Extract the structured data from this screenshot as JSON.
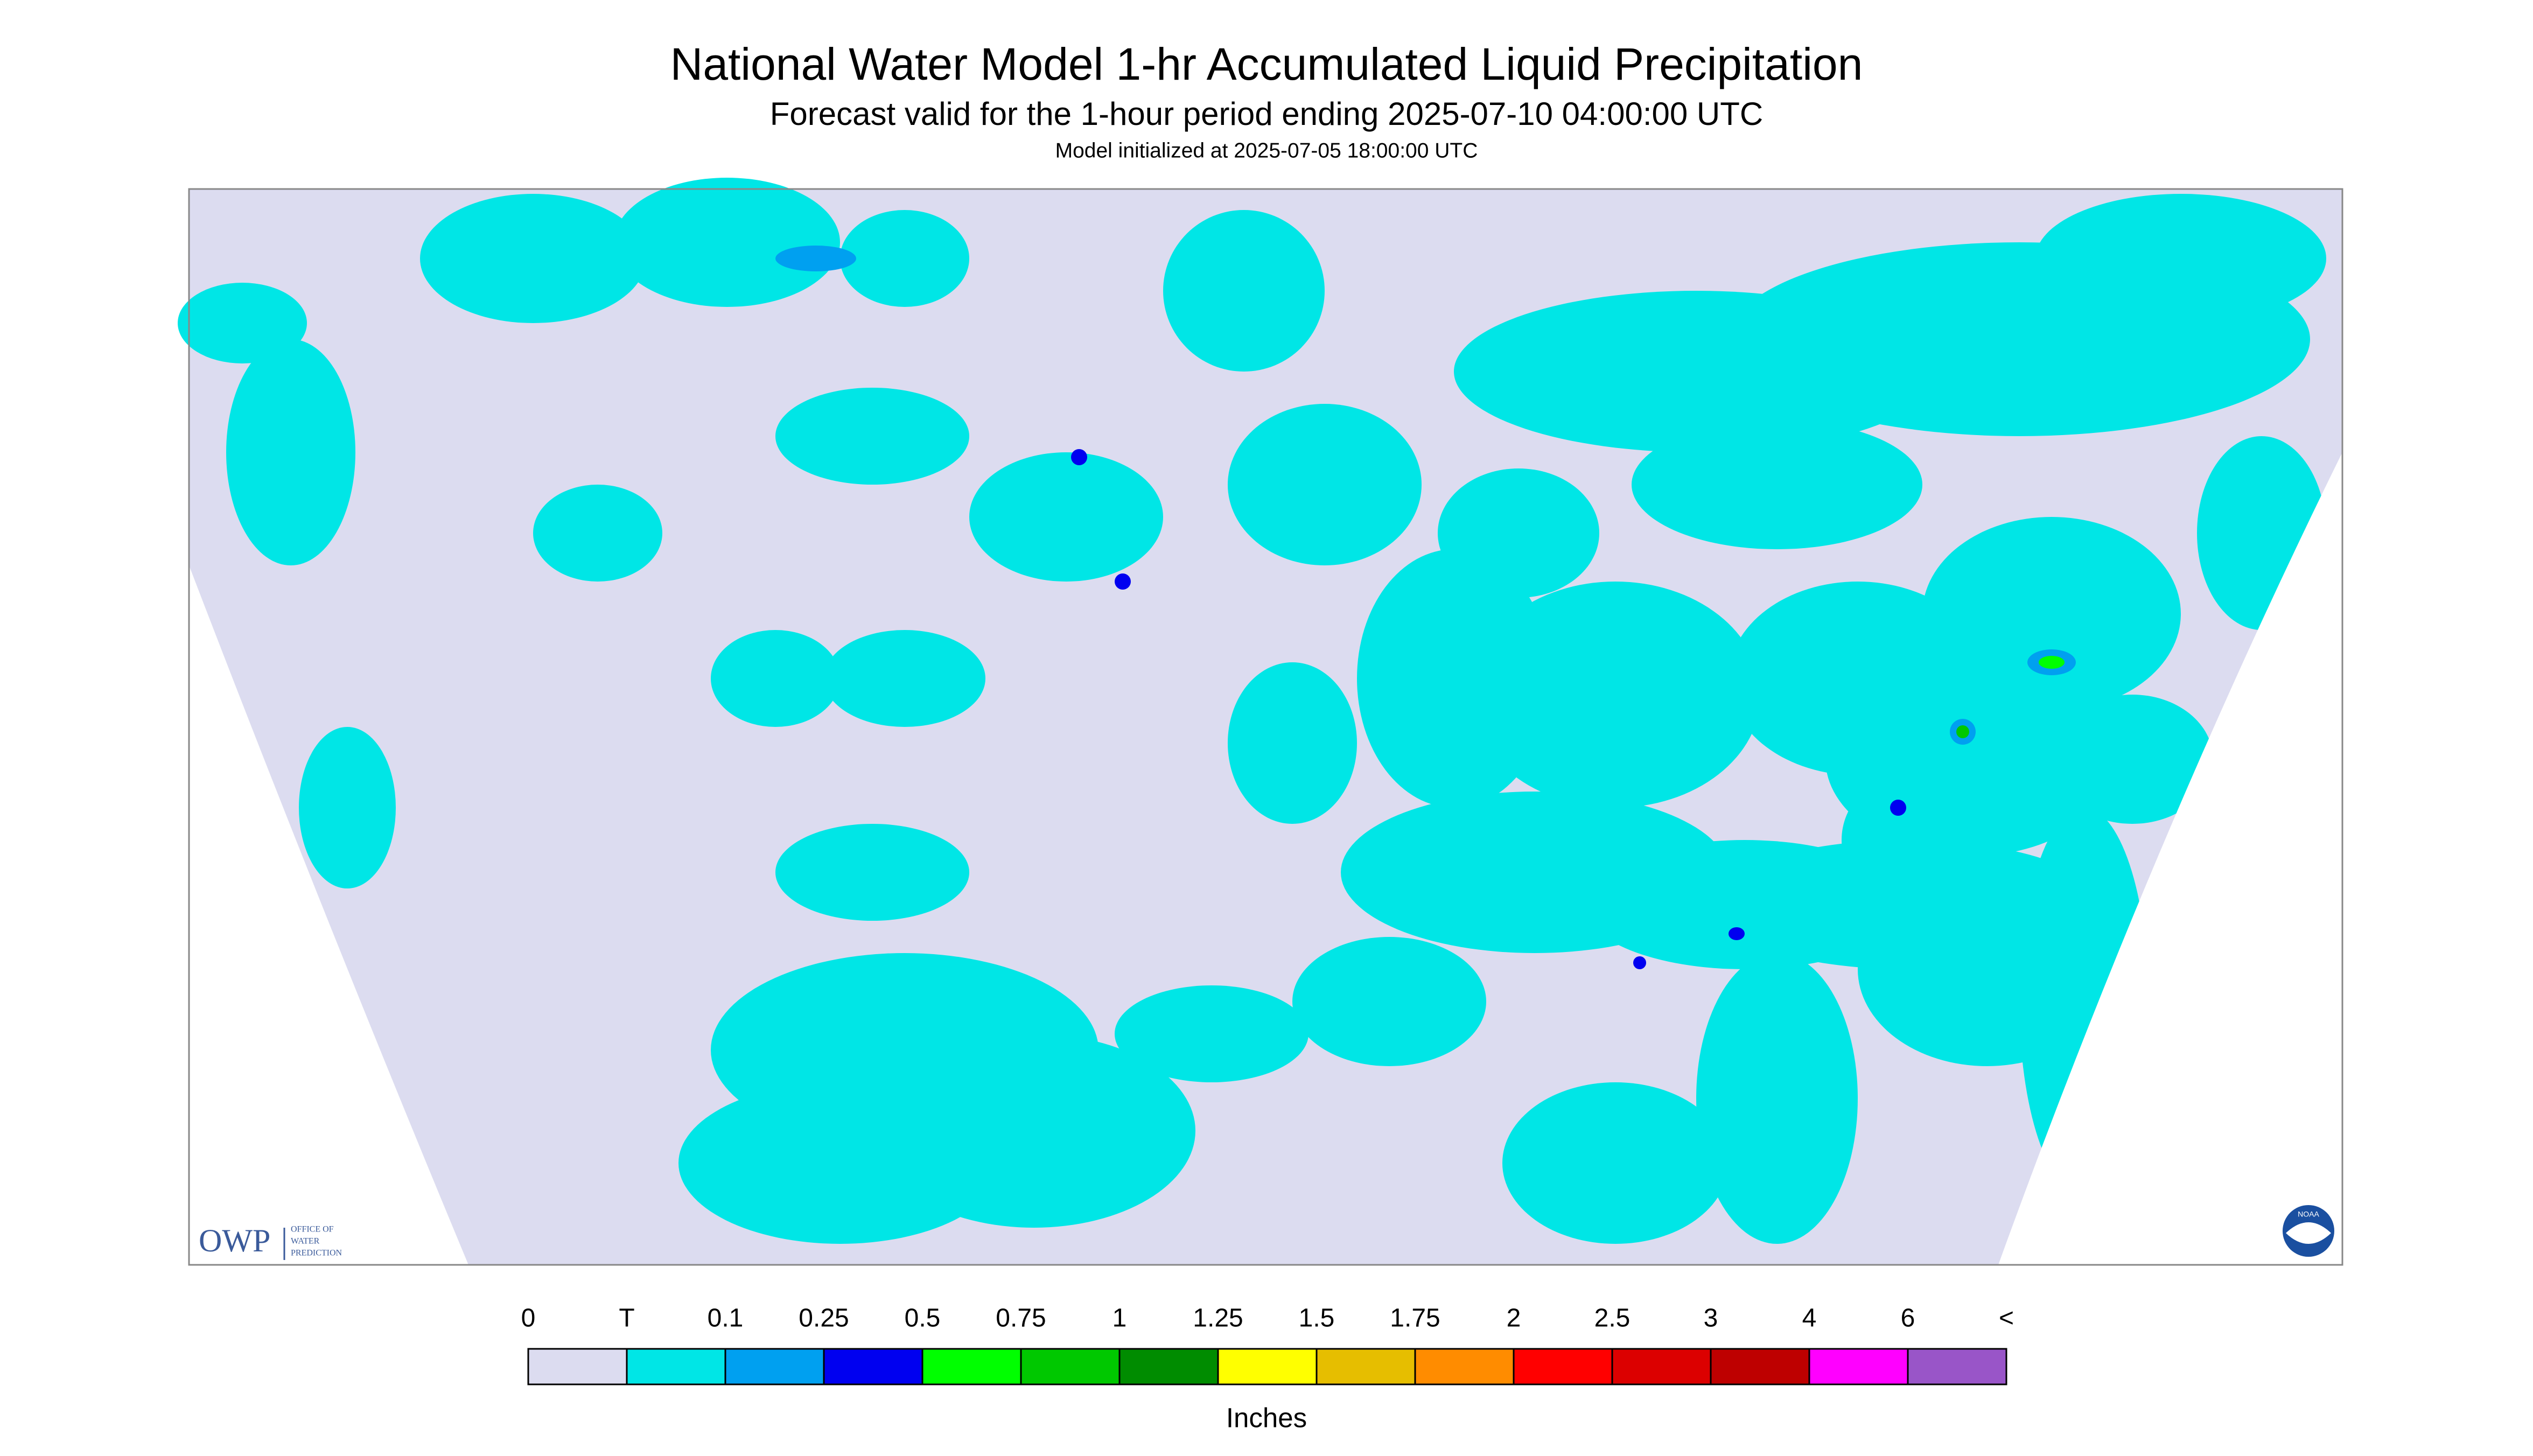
{
  "header": {
    "title": "National Water Model 1-hr Accumulated Liquid Precipitation",
    "subtitle": "Forecast valid for the 1-hour period ending 2025-07-10 04:00:00 UTC",
    "initialized": "Model initialized at 2025-07-05 18:00:00 UTC"
  },
  "legend": {
    "labels": [
      "0",
      "T",
      "0.1",
      "0.25",
      "0.5",
      "0.75",
      "1",
      "1.25",
      "1.5",
      "1.75",
      "2",
      "2.5",
      "3",
      "4",
      "6",
      "<"
    ],
    "colors": [
      "#dcdcf0",
      "#00e6e6",
      "#00a0f0",
      "#0000f0",
      "#00ff00",
      "#00c800",
      "#008c00",
      "#ffff00",
      "#e6be00",
      "#ff8c00",
      "#ff0000",
      "#dc0000",
      "#be0000",
      "#ff00ff",
      "#9955c8"
    ],
    "units": "Inches"
  },
  "owp_logo": {
    "name": "OWP",
    "lines": [
      "OFFICE OF",
      "WATER",
      "PREDICTION"
    ]
  },
  "noaa_logo": "NOAA"
}
